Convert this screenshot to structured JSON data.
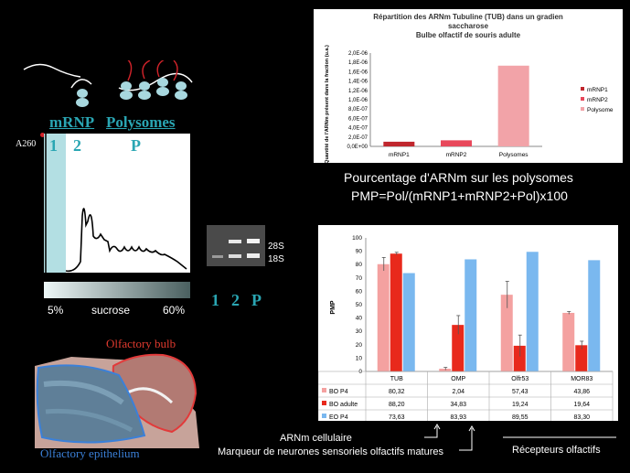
{
  "schematic": {
    "mrnp_label": "mRNP",
    "polysomes_label": "Polysomes"
  },
  "gradient": {
    "a260_label": "A260",
    "fraction_labels": [
      "1",
      "2",
      "P"
    ],
    "sucrose_low": "5%",
    "sucrose_label": "sucrose",
    "sucrose_high": "60%"
  },
  "gel": {
    "band_28s": "28S",
    "band_18s": "18S",
    "lane_labels": [
      "1",
      "2",
      "P"
    ]
  },
  "section": {
    "olfactory_bulb": "Olfactory bulb",
    "olfactory_epithelium": "Olfactory epithelium"
  },
  "formula": {
    "line1": "Pourcentage d'ARNm sur les polysomes",
    "line2": "PMP=Pol/(mRNP1+mRNP2+Pol)x100"
  },
  "captions": {
    "arnm_cellulaire": "ARNm cellulaire",
    "marqueur": "Marqueur de neurones sensoriels olfactifs matures",
    "recepteurs": "Récepteurs olfactifs"
  },
  "chart_data": [
    {
      "type": "bar",
      "title": "Répartition des ARNm Tubuline (TUB) dans un gradien saccharose Bulbe olfactif de souris adulte",
      "title_lines": [
        "Répartition des ARNm Tubuline (TUB) dans un gradien",
        "saccharose",
        "Bulbe olfactif de souris adulte"
      ],
      "ylabel": "Quantité de l'ARNm présent dans la fraction (u.a.)",
      "categories": [
        "mRNP1",
        "mRNP2",
        "Polysomes"
      ],
      "yticks": [
        "0,0E+00",
        "2,0E-07",
        "4,0E-07",
        "6,0E-07",
        "8,0E-07",
        "1,0E-06",
        "1,2E-06",
        "1,4E-06",
        "1,6E-06",
        "1,8E-06",
        "2,0E-06"
      ],
      "ylim": [
        0,
        2e-06
      ],
      "legend": [
        "mRNP1",
        "mRNP2",
        "Polysome"
      ],
      "colors": [
        "#c0272d",
        "#e8485b",
        "#f2a3a8"
      ],
      "values": [
        1e-07,
        1.3e-07,
        1.73e-06
      ]
    },
    {
      "type": "bar",
      "ylabel": "PMP",
      "categories": [
        "TUB",
        "OMP",
        "Olfr53",
        "MOR83"
      ],
      "ylim": [
        0,
        100
      ],
      "yticks": [
        "0",
        "10",
        "20",
        "30",
        "40",
        "50",
        "60",
        "70",
        "80",
        "90",
        "100"
      ],
      "series": [
        {
          "name": "BO P4",
          "color": "#f4a1a0",
          "values": [
            80.32,
            2.04,
            57.43,
            43.86
          ],
          "labels": [
            "80,32",
            "2,04",
            "57,43",
            "43,86"
          ]
        },
        {
          "name": "BO adulte",
          "color": "#e8291c",
          "values": [
            88.2,
            34.83,
            19.24,
            19.64
          ],
          "labels": [
            "88,20",
            "34,83",
            "19,24",
            "19,64"
          ]
        },
        {
          "name": "EO P4",
          "color": "#7ab8ef",
          "values": [
            73.63,
            83.93,
            89.55,
            83.3
          ],
          "labels": [
            "73,63",
            "83,93",
            "89,55",
            "83,30"
          ]
        }
      ],
      "errors": [
        [
          5,
          1,
          10,
          1
        ],
        [
          1,
          7,
          8,
          3
        ],
        [
          0,
          0,
          0,
          0
        ]
      ]
    }
  ]
}
